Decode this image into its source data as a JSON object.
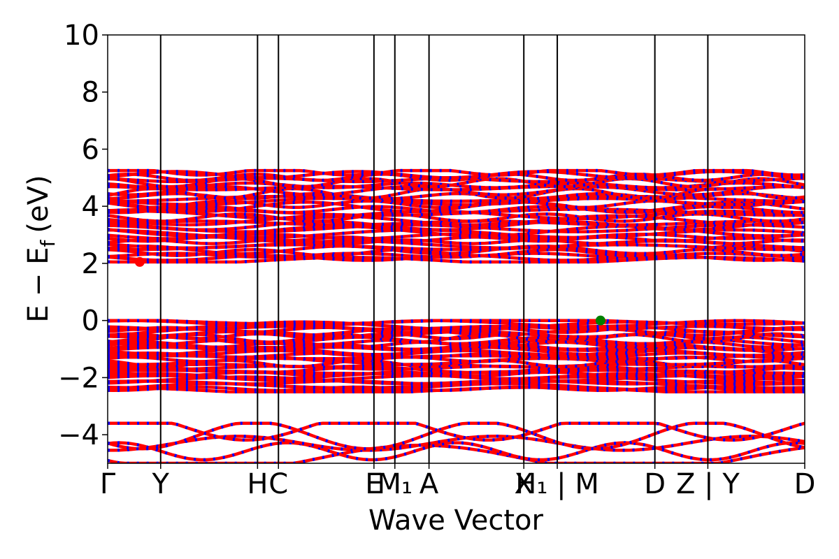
{
  "chart_data": {
    "type": "line",
    "title": "",
    "xlabel": "Wave Vector",
    "ylabel": "E − E_f (eV)",
    "ylabel_parts": {
      "E1": "E",
      "minus": "−",
      "E2": "E",
      "sub": "f",
      "unit": "(eV)"
    },
    "ylim": [
      -5,
      10
    ],
    "xlim": [
      0,
      1
    ],
    "yticks": [
      -4,
      -2,
      0,
      2,
      4,
      6,
      8,
      10
    ],
    "ytick_labels": [
      "−4",
      "−2",
      "0",
      "2",
      "4",
      "6",
      "8",
      "10"
    ],
    "kpoints": [
      {
        "label": "Γ",
        "x": 0.0
      },
      {
        "label": "Y",
        "x": 0.076
      },
      {
        "label": "H",
        "x": 0.215
      },
      {
        "label": "C",
        "x": 0.245
      },
      {
        "label": "E",
        "x": 0.382
      },
      {
        "label": "M₁",
        "x": 0.412
      },
      {
        "label": "A",
        "x": 0.461
      },
      {
        "label": "X",
        "x": 0.597
      },
      {
        "label": "H₁ | M",
        "x": 0.645
      },
      {
        "label": "D",
        "x": 0.785
      },
      {
        "label": "Z | Y",
        "x": 0.861
      },
      {
        "label": "D",
        "x": 1.0
      }
    ],
    "vertical_lines_x": [
      0.076,
      0.215,
      0.245,
      0.382,
      0.412,
      0.461,
      0.597,
      0.645,
      0.785,
      0.861
    ],
    "series": [
      {
        "name": "conduction bands",
        "energy_range": [
          2.05,
          5.25
        ],
        "colors": [
          "#ff0000",
          "#0000ff"
        ]
      },
      {
        "name": "valence bands",
        "energy_range": [
          -2.5,
          0.0
        ],
        "colors": [
          "#ff0000",
          "#0000ff"
        ]
      },
      {
        "name": "lower bands",
        "energy_range": [
          -5.0,
          -3.6
        ],
        "colors": [
          "#ff0000",
          "#0000ff"
        ]
      }
    ],
    "markers": [
      {
        "name": "CBM",
        "x": 0.046,
        "y": 2.05,
        "color": "#ff0000"
      },
      {
        "name": "VBM",
        "x": 0.707,
        "y": 0.0,
        "color": "#008000"
      }
    ],
    "grid": false,
    "legend": "none"
  }
}
